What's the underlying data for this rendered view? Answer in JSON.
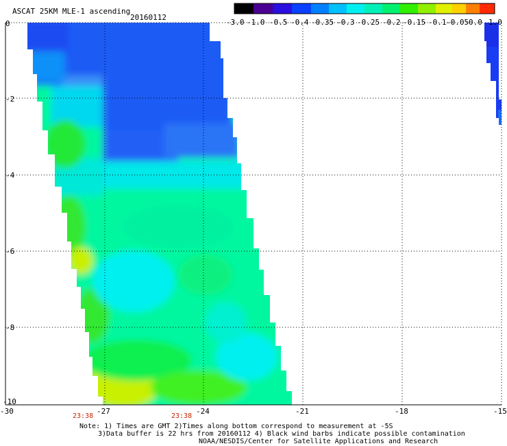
{
  "title": "ASCAT 25KM MLE-1 ascending",
  "date": "20160112",
  "colorbar": {
    "labels": [
      "-3.0",
      "-1.0",
      "-0.5",
      "-0.4",
      "-0.35",
      "-0.3",
      "-0.25",
      "-0.2",
      "-0.15",
      "-0.1",
      "-0.05",
      "0.0",
      "1.0"
    ],
    "colors": [
      "#000000",
      "#5000a0",
      "#2020ff",
      "#0a60ff",
      "#00b0ff",
      "#00f0f0",
      "#00f0b0",
      "#00f070",
      "#40f000",
      "#b0f000",
      "#f0f000",
      "#ff8000",
      "#ff2000"
    ]
  },
  "map": {
    "lon_range": [
      -30,
      -15
    ],
    "lat_range": [
      -10,
      0
    ],
    "x_ticks": [
      "-30",
      "-27",
      "-24",
      "-21",
      "-18",
      "-15"
    ],
    "y_ticks": [
      "0",
      "-2",
      "-4",
      "-6",
      "-8",
      "-10"
    ],
    "time_labels": [
      "23:38",
      "23:38"
    ],
    "time_color": "#cc2200"
  },
  "notes": [
    "Note: 1) Times are GMT 2)Times along bottom correspond to measurement at -5S",
    "3)Data buffer is 22 hrs from 20160112 4) Black wind barbs indicate possible contamination",
    "NOAA/NESDIS/Center for Satellite Applications and Research"
  ]
}
